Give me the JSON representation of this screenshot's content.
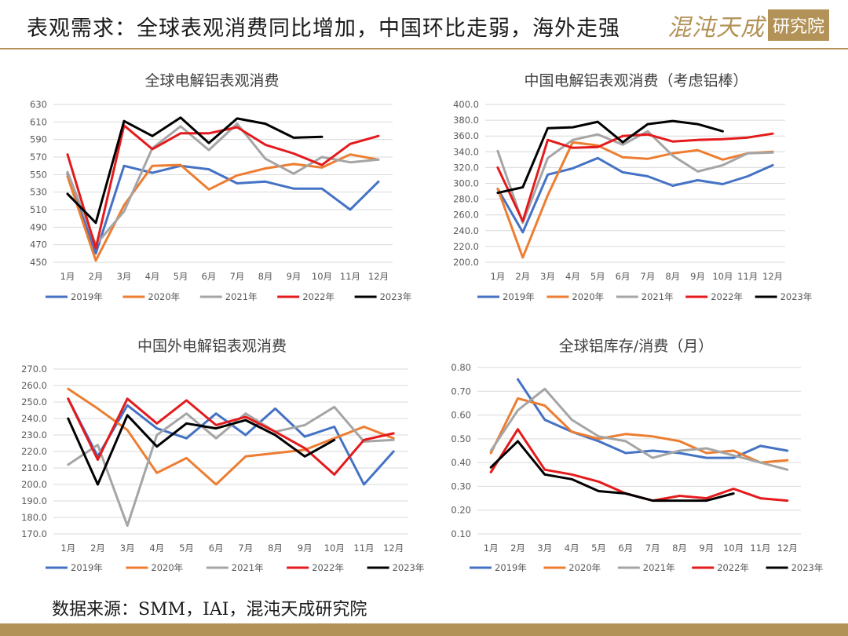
{
  "page": {
    "title": "表观需求：全球表观消费同比增加，中国环比走弱，海外走强",
    "brand_cn": "混沌天成",
    "brand_seal": "研究院",
    "source": "数据来源：SMM，IAI，混沌天成研究院",
    "accent_color": "#b39257"
  },
  "chart_data": [
    {
      "type": "line",
      "title": "全球电解铝表观消费",
      "categories": [
        "1月",
        "2月",
        "3月",
        "4月",
        "5月",
        "6月",
        "7月",
        "8月",
        "9月",
        "10月",
        "11月",
        "12月"
      ],
      "yticks": [
        "630",
        "610",
        "590",
        "570",
        "550",
        "530",
        "510",
        "490",
        "470",
        "450"
      ],
      "ylim": [
        450,
        630
      ],
      "grid": true,
      "legend_position": "bottom",
      "series": [
        {
          "name": "2019年",
          "color": "#4472c4",
          "values": [
            551,
            460,
            560,
            552,
            560,
            556,
            540,
            542,
            534,
            534,
            510,
            542
          ]
        },
        {
          "name": "2020年",
          "color": "#ed7d31",
          "values": [
            548,
            452,
            515,
            560,
            561,
            533,
            549,
            557,
            562,
            558,
            573,
            567
          ]
        },
        {
          "name": "2021年",
          "color": "#a5a5a5",
          "values": [
            553,
            470,
            508,
            580,
            605,
            578,
            608,
            568,
            551,
            570,
            564,
            567
          ]
        },
        {
          "name": "2022年",
          "color": "#e41a1c",
          "values": [
            573,
            466,
            606,
            579,
            597,
            597,
            604,
            584,
            574,
            561,
            585,
            594
          ]
        },
        {
          "name": "2023年",
          "color": "#000000",
          "values": [
            528,
            495,
            611,
            594,
            615,
            586,
            614,
            608,
            592,
            593,
            null,
            null
          ]
        }
      ]
    },
    {
      "type": "line",
      "title": "中国电解铝表观消费（考虑铝棒）",
      "categories": [
        "1月",
        "2月",
        "3月",
        "4月",
        "5月",
        "6月",
        "7月",
        "8月",
        "9月",
        "10月",
        "11月",
        "12月"
      ],
      "yticks": [
        "400.0",
        "380.0",
        "360.0",
        "340.0",
        "320.0",
        "300.0",
        "280.0",
        "260.0",
        "240.0",
        "220.0",
        "200.0"
      ],
      "ylim": [
        200,
        400
      ],
      "grid": true,
      "legend_position": "bottom",
      "series": [
        {
          "name": "2019年",
          "color": "#4472c4",
          "values": [
            293,
            238,
            311,
            319,
            332,
            314,
            309,
            297,
            304,
            299,
            309,
            323
          ]
        },
        {
          "name": "2020年",
          "color": "#ed7d31",
          "values": [
            293,
            206,
            285,
            352,
            348,
            333,
            331,
            338,
            342,
            330,
            338,
            340
          ]
        },
        {
          "name": "2021年",
          "color": "#a5a5a5",
          "values": [
            341,
            250,
            332,
            355,
            362,
            349,
            366,
            335,
            315,
            323,
            338,
            339
          ]
        },
        {
          "name": "2022年",
          "color": "#e41a1c",
          "values": [
            320,
            252,
            355,
            345,
            346,
            360,
            362,
            353,
            355,
            356,
            358,
            363
          ]
        },
        {
          "name": "2023年",
          "color": "#000000",
          "values": [
            288,
            295,
            370,
            371,
            378,
            352,
            375,
            379,
            375,
            366,
            null,
            null
          ]
        }
      ]
    },
    {
      "type": "line",
      "title": "中国外电解铝表观消费",
      "categories": [
        "1月",
        "2月",
        "3月",
        "4月",
        "5月",
        "6月",
        "7月",
        "8月",
        "9月",
        "10月",
        "11月",
        "12月"
      ],
      "yticks": [
        "270.0",
        "260.0",
        "250.0",
        "240.0",
        "230.0",
        "220.0",
        "210.0",
        "200.0",
        "190.0",
        "180.0",
        "170.0"
      ],
      "ylim": [
        170,
        270
      ],
      "grid": true,
      "legend_position": "bottom",
      "series": [
        {
          "name": "2019年",
          "color": "#4472c4",
          "values": [
            252,
            217,
            248,
            234,
            228,
            243,
            230,
            246,
            229,
            235,
            200,
            220
          ]
        },
        {
          "name": "2020年",
          "color": "#ed7d31",
          "values": [
            258,
            246,
            233,
            207,
            216,
            200,
            217,
            219,
            221,
            228,
            235,
            228
          ]
        },
        {
          "name": "2021年",
          "color": "#a5a5a5",
          "values": [
            212,
            224,
            175,
            230,
            243,
            228,
            243,
            232,
            236,
            247,
            226,
            227
          ]
        },
        {
          "name": "2022年",
          "color": "#e41a1c",
          "values": [
            252,
            215,
            252,
            237,
            251,
            236,
            241,
            232,
            222,
            206,
            227,
            231
          ]
        },
        {
          "name": "2023年",
          "color": "#000000",
          "values": [
            240,
            200,
            242,
            223,
            237,
            234,
            239,
            230,
            217,
            227,
            null,
            null
          ]
        }
      ]
    },
    {
      "type": "line",
      "title": "全球铝库存/消费（月）",
      "categories": [
        "1月",
        "2月",
        "3月",
        "4月",
        "5月",
        "6月",
        "7月",
        "8月",
        "9月",
        "10月",
        "11月",
        "12月"
      ],
      "yticks": [
        "0.80",
        "0.70",
        "0.60",
        "0.50",
        "0.40",
        "0.30",
        "0.20",
        "0.10"
      ],
      "ylim": [
        0.1,
        0.8
      ],
      "grid": true,
      "legend_position": "bottom",
      "series": [
        {
          "name": "2019年",
          "color": "#4472c4",
          "values": [
            null,
            0.75,
            0.58,
            0.53,
            0.49,
            0.44,
            0.45,
            0.44,
            0.42,
            0.42,
            0.47,
            0.45
          ]
        },
        {
          "name": "2020年",
          "color": "#ed7d31",
          "values": [
            0.44,
            0.67,
            0.64,
            0.53,
            0.5,
            0.52,
            0.51,
            0.49,
            0.44,
            0.45,
            0.4,
            0.41
          ]
        },
        {
          "name": "2021年",
          "color": "#a5a5a5",
          "values": [
            0.45,
            0.62,
            0.71,
            0.58,
            0.51,
            0.49,
            0.42,
            0.45,
            0.46,
            0.43,
            0.4,
            0.37
          ]
        },
        {
          "name": "2022年",
          "color": "#e41a1c",
          "values": [
            0.36,
            0.54,
            0.37,
            0.35,
            0.32,
            0.27,
            0.24,
            0.26,
            0.25,
            0.29,
            0.25,
            0.24
          ]
        },
        {
          "name": "2023年",
          "color": "#000000",
          "values": [
            0.38,
            0.49,
            0.35,
            0.33,
            0.28,
            0.27,
            0.24,
            0.24,
            0.24,
            0.27,
            null,
            null
          ]
        }
      ]
    }
  ]
}
